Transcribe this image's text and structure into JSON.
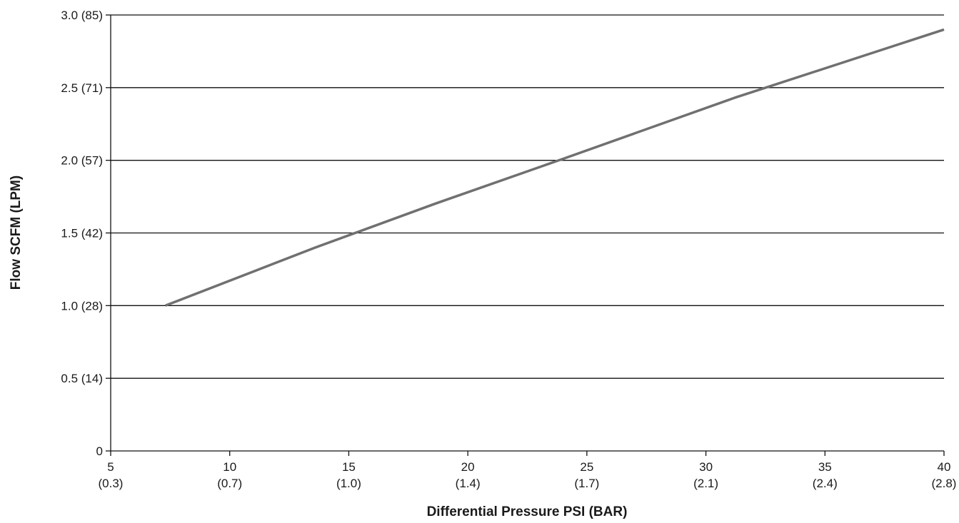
{
  "chart_data": {
    "type": "line",
    "xlabel": "Differential Pressure PSI (BAR)",
    "ylabel": "Flow SCFM (LPM)",
    "xlim": [
      5,
      40
    ],
    "ylim": [
      0,
      3.0
    ],
    "grid": "horizontal",
    "x_ticks": [
      {
        "value": 5,
        "label": "5",
        "sub": "(0.3)"
      },
      {
        "value": 10,
        "label": "10",
        "sub": "(0.7)"
      },
      {
        "value": 15,
        "label": "15",
        "sub": "(1.0)"
      },
      {
        "value": 20,
        "label": "20",
        "sub": "(1.4)"
      },
      {
        "value": 25,
        "label": "25",
        "sub": "(1.7)"
      },
      {
        "value": 30,
        "label": "30",
        "sub": "(2.1)"
      },
      {
        "value": 35,
        "label": "35",
        "sub": "(2.4)"
      },
      {
        "value": 40,
        "label": "40",
        "sub": "(2.8)"
      }
    ],
    "y_ticks": [
      {
        "value": 0,
        "label": "0"
      },
      {
        "value": 0.5,
        "label": "0.5 (14)"
      },
      {
        "value": 1.0,
        "label": "1.0 (28)"
      },
      {
        "value": 1.5,
        "label": "1.5 (42)"
      },
      {
        "value": 2.0,
        "label": "2.0 (57)"
      },
      {
        "value": 2.5,
        "label": "2.5 (71)"
      },
      {
        "value": 3.0,
        "label": "3.0 (85)"
      }
    ],
    "series": [
      {
        "color": "#707070",
        "x": [
          7.3,
          13.6,
          18.6,
          24.0,
          31.2,
          40.0
        ],
        "y": [
          1.0,
          1.4,
          1.7,
          2.01,
          2.43,
          2.9
        ]
      }
    ]
  }
}
